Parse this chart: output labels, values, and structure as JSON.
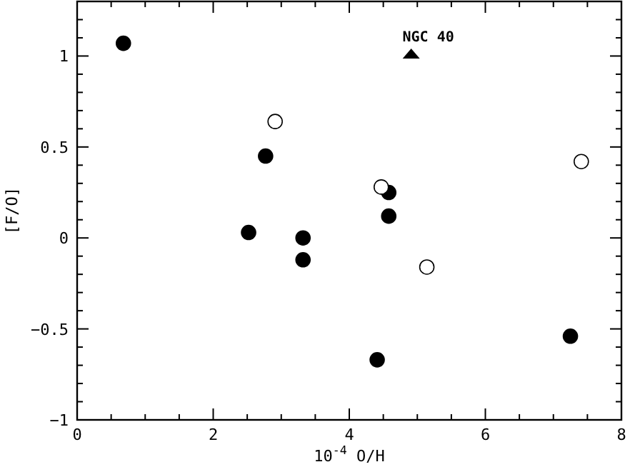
{
  "chart_data": {
    "type": "scatter",
    "xlabel": "10$^{-4}$ O/H",
    "ylabel": "[F/O]",
    "xlim": [
      0,
      8
    ],
    "ylim": [
      -1,
      1.3
    ],
    "xticks": [
      0,
      {
        "value": 0.5,
        "label": null
      },
      {
        "value": 1,
        "label": null
      },
      {
        "value": 1.5,
        "label": null
      },
      2,
      {
        "value": 2.5,
        "label": null
      },
      {
        "value": 3,
        "label": null
      },
      {
        "value": 3.5,
        "label": null
      },
      4,
      {
        "value": 4.5,
        "label": null
      },
      {
        "value": 5,
        "label": null
      },
      {
        "value": 5.5,
        "label": null
      },
      6,
      {
        "value": 6.5,
        "label": null
      },
      {
        "value": 7,
        "label": null
      },
      {
        "value": 7.5,
        "label": null
      },
      8
    ],
    "yticks": [
      -1,
      {
        "value": -0.9,
        "label": null
      },
      {
        "value": -0.8,
        "label": null
      },
      {
        "value": -0.7,
        "label": null
      },
      {
        "value": -0.6,
        "label": null
      },
      -0.5,
      {
        "value": -0.4,
        "label": null
      },
      {
        "value": -0.3,
        "label": null
      },
      {
        "value": -0.2,
        "label": null
      },
      {
        "value": -0.1,
        "label": null
      },
      0,
      {
        "value": 0.1,
        "label": null
      },
      {
        "value": 0.2,
        "label": null
      },
      {
        "value": 0.3,
        "label": null
      },
      {
        "value": 0.4,
        "label": null
      },
      0.5,
      {
        "value": 0.6,
        "label": null
      },
      {
        "value": 0.7,
        "label": null
      },
      {
        "value": 0.8,
        "label": null
      },
      {
        "value": 0.9,
        "label": null
      },
      1,
      {
        "value": 1.1,
        "label": null
      },
      {
        "value": 1.2,
        "label": null
      }
    ],
    "grid": false,
    "series": [
      {
        "color": "#000000",
        "marker": "circle",
        "x": [
          0.68,
          2.52,
          2.77,
          3.32,
          3.32,
          4.58,
          4.58,
          4.41,
          7.25
        ],
        "values": [
          1.07,
          0.03,
          0.45,
          0.0,
          -0.12,
          0.25,
          0.12,
          -0.67,
          -0.54
        ]
      },
      {
        "color": "#ffffff",
        "marker": "circle",
        "x": [
          2.91,
          4.47,
          5.14,
          7.41
        ],
        "values": [
          0.64,
          0.28,
          -0.16,
          0.42
        ]
      },
      {
        "color": "#000000",
        "marker": "triangle",
        "x": [
          4.91
        ],
        "values": [
          1.01
        ]
      }
    ],
    "annotations": [
      {
        "text": "NGC 40",
        "x": 4.91,
        "y": 1.01
      }
    ]
  }
}
